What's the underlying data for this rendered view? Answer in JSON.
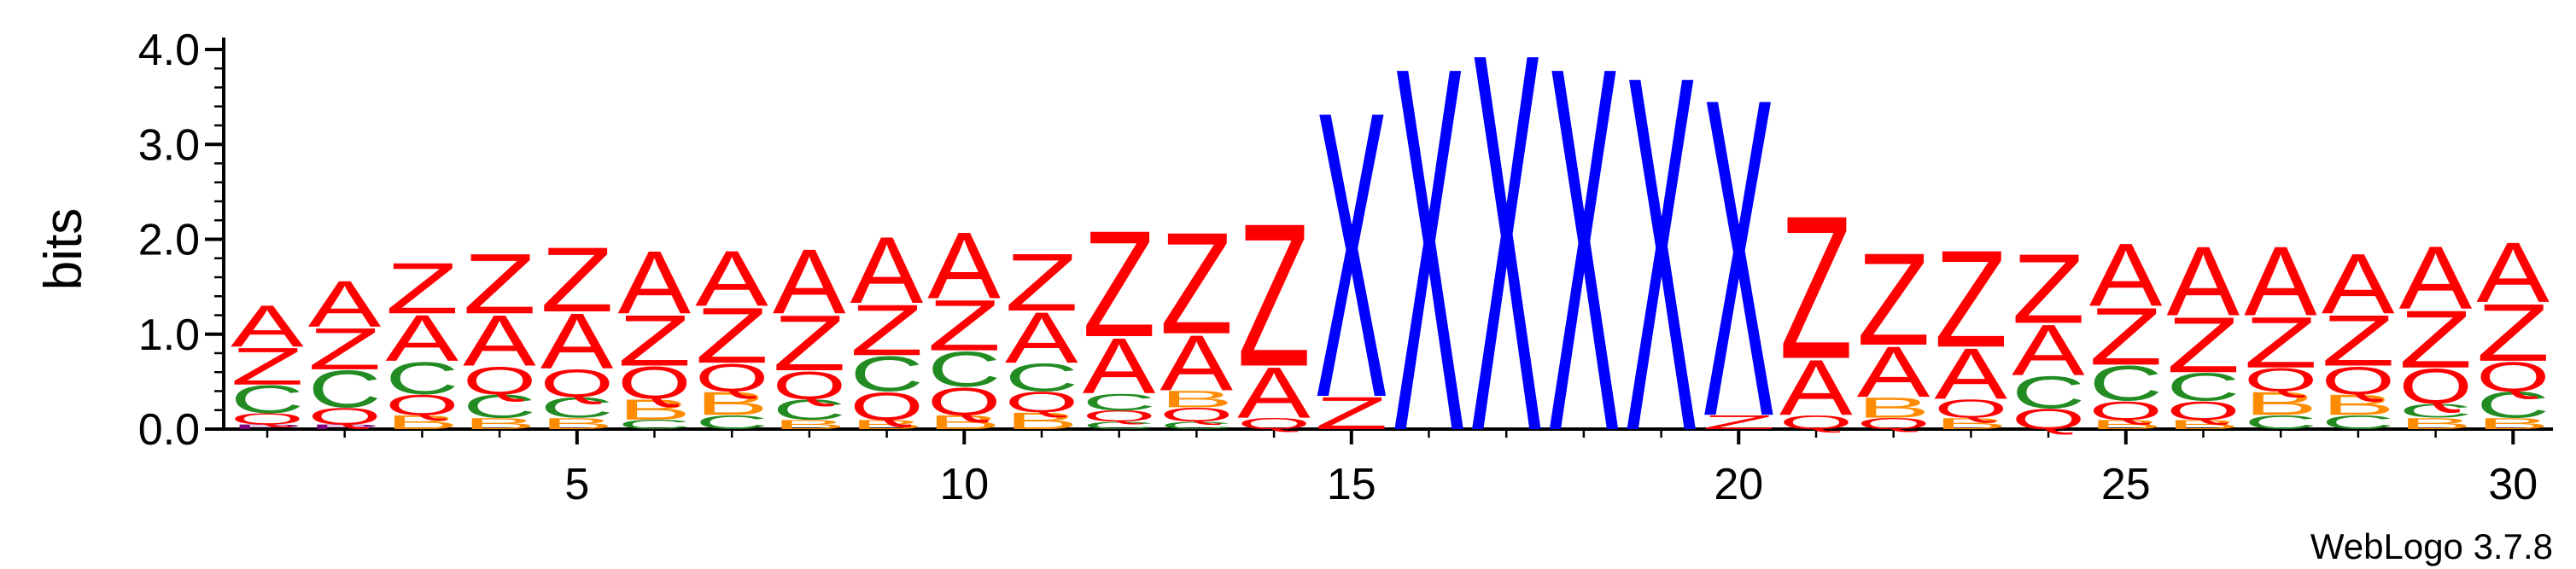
{
  "chart_data": {
    "type": "sequence-logo",
    "ylabel": "bits",
    "ylim": [
      0,
      4.0
    ],
    "yticks": [
      "0.0",
      "1.0",
      "2.0",
      "3.0",
      "4.0"
    ],
    "xticks": [
      "5",
      "10",
      "15",
      "20",
      "25",
      "30"
    ],
    "credit": "WebLogo 3.7.8",
    "colors": {
      "A": "#ff0000",
      "Z": "#ff0000",
      "X": "#0000ff",
      "C": "#228b22",
      "Q": "#ff0000",
      "B": "#ff8c00",
      "P": "#800080"
    },
    "positions": [
      {
        "pos": 1,
        "letters": [
          [
            "P",
            0.05
          ],
          [
            "Q",
            0.12
          ],
          [
            "C",
            0.3
          ],
          [
            "Z",
            0.4
          ],
          [
            "A",
            0.45
          ]
        ]
      },
      {
        "pos": 2,
        "letters": [
          [
            "P",
            0.05
          ],
          [
            "Q",
            0.18
          ],
          [
            "C",
            0.4
          ],
          [
            "Z",
            0.45
          ],
          [
            "A",
            0.5
          ]
        ]
      },
      {
        "pos": 3,
        "letters": [
          [
            "B",
            0.15
          ],
          [
            "Q",
            0.22
          ],
          [
            "C",
            0.35
          ],
          [
            "A",
            0.5
          ],
          [
            "Z",
            0.55
          ]
        ]
      },
      {
        "pos": 4,
        "letters": [
          [
            "B",
            0.12
          ],
          [
            "C",
            0.25
          ],
          [
            "Q",
            0.3
          ],
          [
            "A",
            0.55
          ],
          [
            "Z",
            0.65
          ]
        ]
      },
      {
        "pos": 5,
        "letters": [
          [
            "B",
            0.12
          ],
          [
            "C",
            0.22
          ],
          [
            "Q",
            0.3
          ],
          [
            "A",
            0.6
          ],
          [
            "Z",
            0.7
          ]
        ]
      },
      {
        "pos": 6,
        "letters": [
          [
            "C",
            0.1
          ],
          [
            "B",
            0.22
          ],
          [
            "Q",
            0.35
          ],
          [
            "Z",
            0.55
          ],
          [
            "A",
            0.68
          ]
        ]
      },
      {
        "pos": 7,
        "letters": [
          [
            "C",
            0.15
          ],
          [
            "B",
            0.25
          ],
          [
            "Q",
            0.3
          ],
          [
            "Z",
            0.6
          ],
          [
            "A",
            0.6
          ]
        ]
      },
      {
        "pos": 8,
        "letters": [
          [
            "B",
            0.1
          ],
          [
            "C",
            0.22
          ],
          [
            "Q",
            0.3
          ],
          [
            "Z",
            0.6
          ],
          [
            "A",
            0.7
          ]
        ]
      },
      {
        "pos": 9,
        "letters": [
          [
            "B",
            0.1
          ],
          [
            "Q",
            0.3
          ],
          [
            "C",
            0.38
          ],
          [
            "Z",
            0.55
          ],
          [
            "A",
            0.72
          ]
        ]
      },
      {
        "pos": 10,
        "letters": [
          [
            "B",
            0.15
          ],
          [
            "Q",
            0.3
          ],
          [
            "C",
            0.38
          ],
          [
            "Z",
            0.55
          ],
          [
            "A",
            0.72
          ]
        ]
      },
      {
        "pos": 11,
        "letters": [
          [
            "B",
            0.18
          ],
          [
            "Q",
            0.22
          ],
          [
            "C",
            0.3
          ],
          [
            "A",
            0.55
          ],
          [
            "Z",
            0.62
          ]
        ]
      },
      {
        "pos": 12,
        "letters": [
          [
            "C",
            0.08
          ],
          [
            "Q",
            0.12
          ],
          [
            "C",
            0.18
          ],
          [
            "A",
            0.6
          ],
          [
            "Z",
            1.15
          ]
        ]
      },
      {
        "pos": 13,
        "letters": [
          [
            "C",
            0.08
          ],
          [
            "Q",
            0.15
          ],
          [
            "B",
            0.18
          ],
          [
            "A",
            0.6
          ],
          [
            "Z",
            1.1
          ]
        ]
      },
      {
        "pos": 14,
        "letters": [
          [
            "Q",
            0.12
          ],
          [
            "A",
            0.55
          ],
          [
            "Z",
            1.55
          ]
        ]
      },
      {
        "pos": 15,
        "letters": [
          [
            "Z",
            0.35
          ],
          [
            "X",
            3.1
          ]
        ]
      },
      {
        "pos": 16,
        "letters": [
          [
            "X",
            3.95
          ]
        ]
      },
      {
        "pos": 17,
        "letters": [
          [
            "X",
            4.1
          ]
        ]
      },
      {
        "pos": 18,
        "letters": [
          [
            "X",
            3.95
          ]
        ]
      },
      {
        "pos": 19,
        "letters": [
          [
            "X",
            3.85
          ]
        ]
      },
      {
        "pos": 20,
        "letters": [
          [
            "Z",
            0.15
          ],
          [
            "X",
            3.45
          ]
        ]
      },
      {
        "pos": 21,
        "letters": [
          [
            "Q",
            0.15
          ],
          [
            "A",
            0.6
          ],
          [
            "Z",
            1.55
          ]
        ]
      },
      {
        "pos": 22,
        "letters": [
          [
            "Q",
            0.12
          ],
          [
            "B",
            0.22
          ],
          [
            "A",
            0.55
          ],
          [
            "Z",
            1.0
          ]
        ]
      },
      {
        "pos": 23,
        "letters": [
          [
            "B",
            0.12
          ],
          [
            "Q",
            0.2
          ],
          [
            "A",
            0.55
          ],
          [
            "Z",
            1.05
          ]
        ]
      },
      {
        "pos": 24,
        "letters": [
          [
            "Q",
            0.22
          ],
          [
            "C",
            0.35
          ],
          [
            "A",
            0.55
          ],
          [
            "Z",
            0.75
          ]
        ]
      },
      {
        "pos": 25,
        "letters": [
          [
            "B",
            0.1
          ],
          [
            "Q",
            0.2
          ],
          [
            "C",
            0.38
          ],
          [
            "Z",
            0.62
          ],
          [
            "A",
            0.68
          ]
        ]
      },
      {
        "pos": 26,
        "letters": [
          [
            "B",
            0.1
          ],
          [
            "Q",
            0.2
          ],
          [
            "C",
            0.3
          ],
          [
            "Z",
            0.6
          ],
          [
            "A",
            0.75
          ]
        ]
      },
      {
        "pos": 27,
        "letters": [
          [
            "C",
            0.15
          ],
          [
            "B",
            0.25
          ],
          [
            "Q",
            0.25
          ],
          [
            "Z",
            0.55
          ],
          [
            "A",
            0.75
          ]
        ]
      },
      {
        "pos": 28,
        "letters": [
          [
            "C",
            0.15
          ],
          [
            "B",
            0.22
          ],
          [
            "Q",
            0.3
          ],
          [
            "Z",
            0.55
          ],
          [
            "A",
            0.65
          ]
        ]
      },
      {
        "pos": 29,
        "letters": [
          [
            "B",
            0.12
          ],
          [
            "C",
            0.15
          ],
          [
            "Q",
            0.38
          ],
          [
            "Z",
            0.62
          ],
          [
            "A",
            0.68
          ]
        ]
      },
      {
        "pos": 30,
        "letters": [
          [
            "B",
            0.12
          ],
          [
            "C",
            0.28
          ],
          [
            "Q",
            0.32
          ],
          [
            "Z",
            0.62
          ],
          [
            "A",
            0.65
          ]
        ]
      }
    ]
  }
}
